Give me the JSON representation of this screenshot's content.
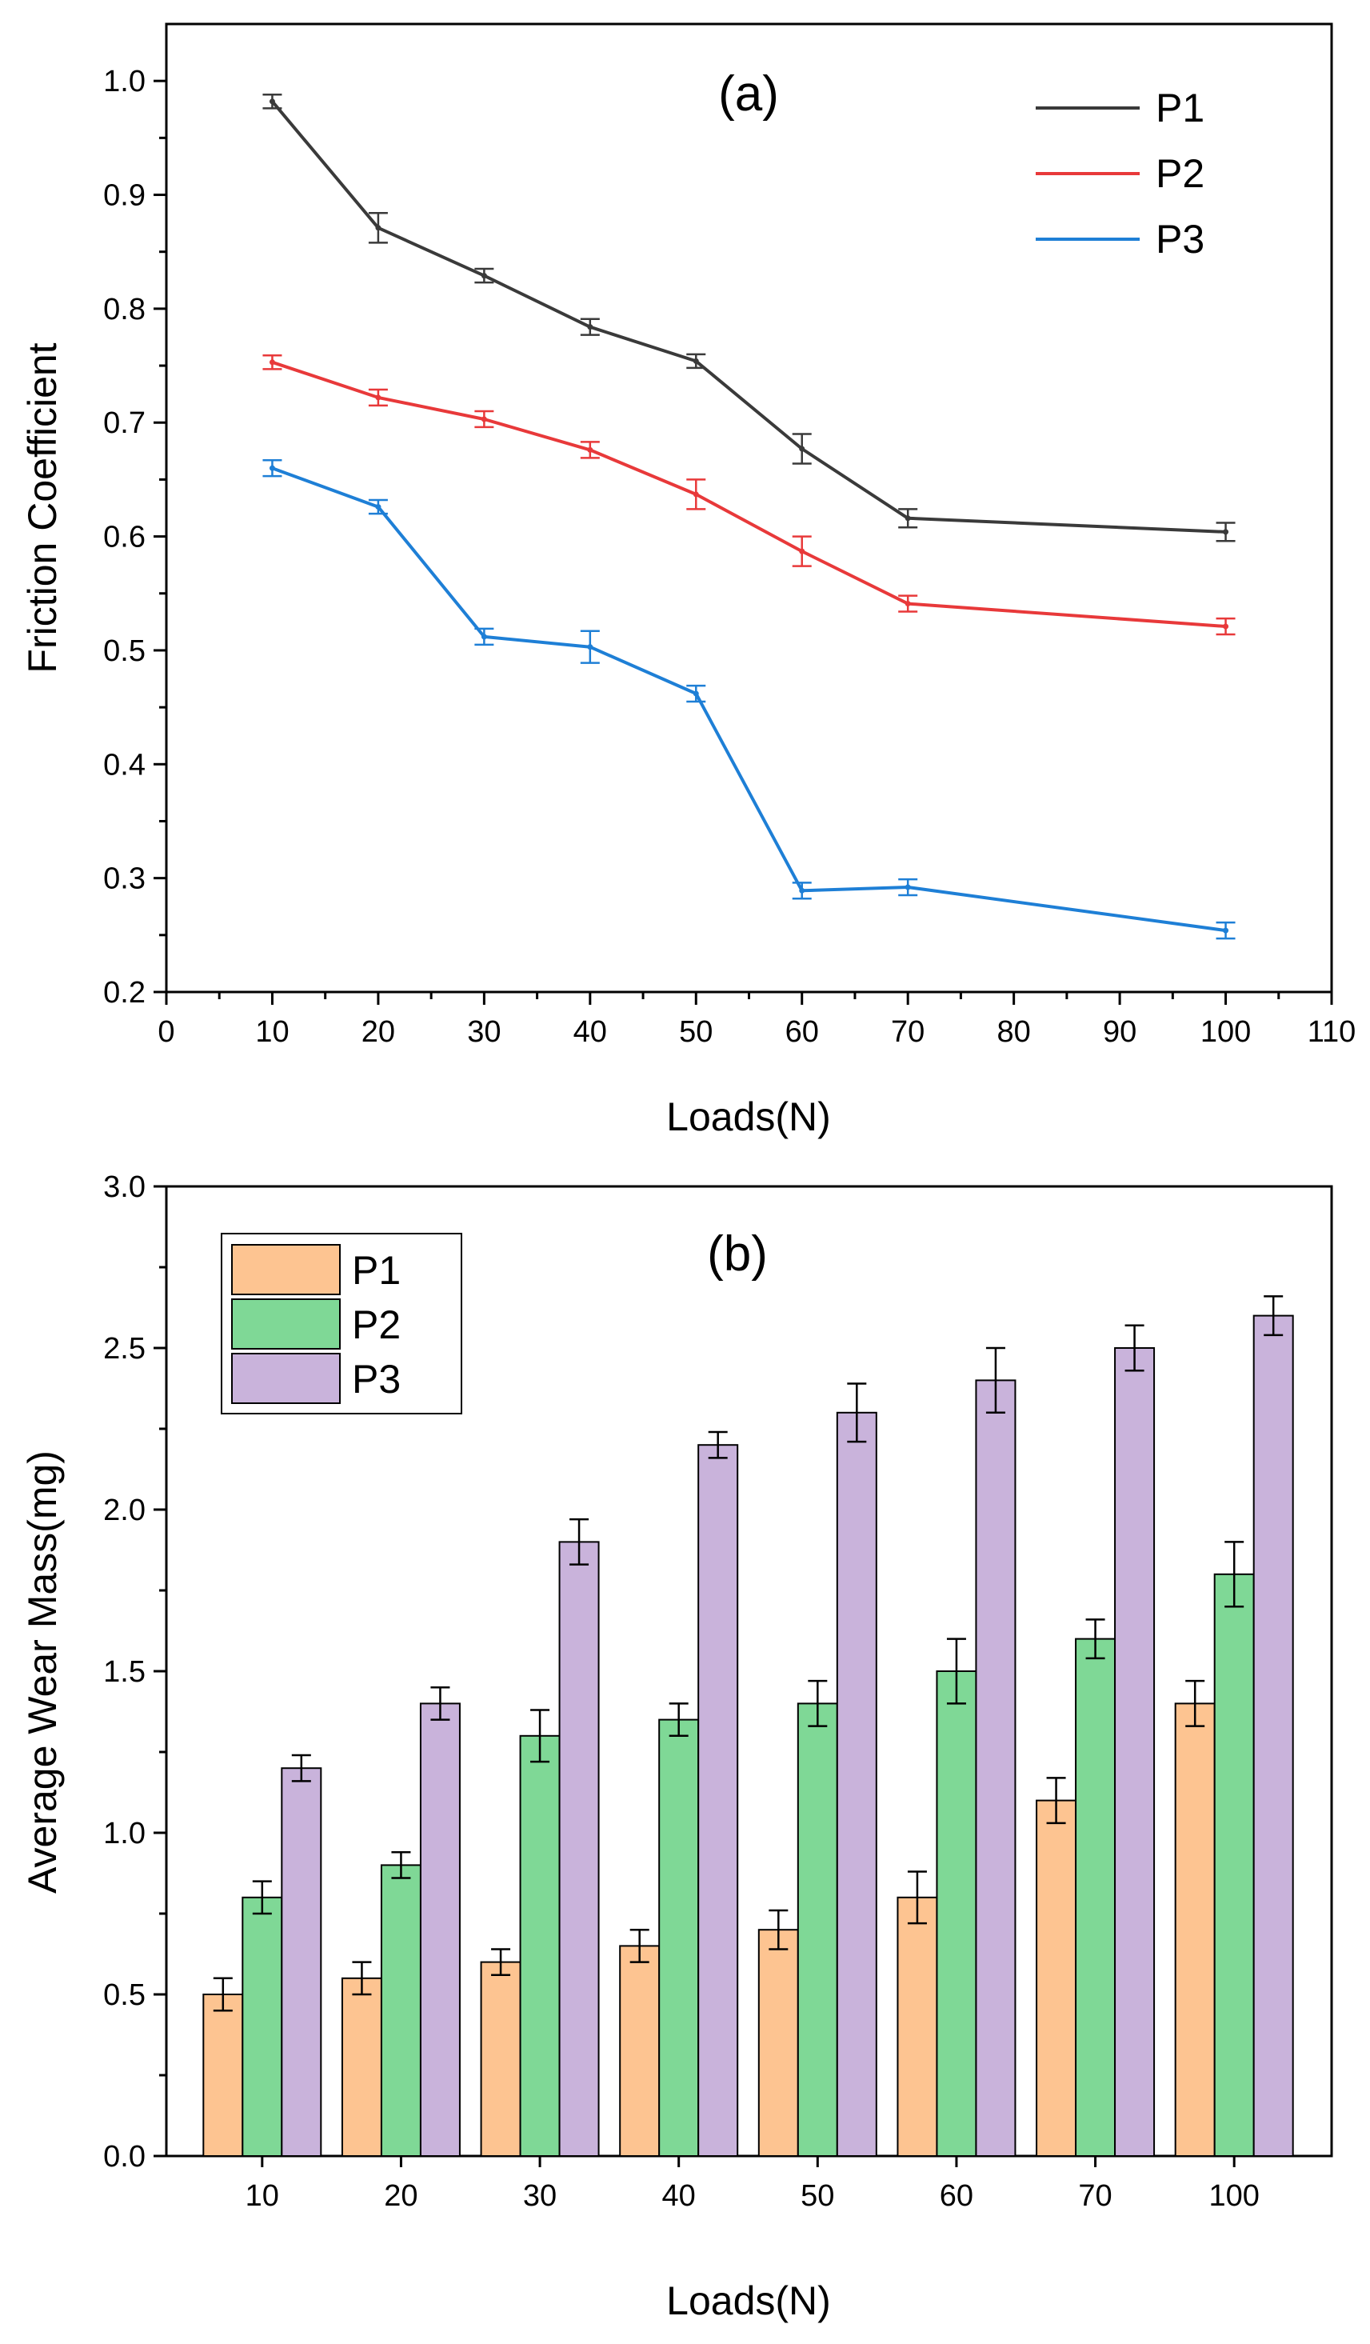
{
  "chart_data": [
    {
      "panel": "(a)",
      "type": "line",
      "xlabel": "Loads(N)",
      "ylabel": "Friction Coefficient",
      "xlim": [
        0,
        110
      ],
      "ylim": [
        0.2,
        1.05
      ],
      "xticks": [
        0,
        10,
        20,
        30,
        40,
        50,
        60,
        70,
        80,
        90,
        100,
        110
      ],
      "yticks": [
        0.2,
        0.3,
        0.4,
        0.5,
        0.6,
        0.7,
        0.8,
        0.9,
        1.0
      ],
      "ytick_labels": [
        "0.2",
        "0.3",
        "0.4",
        "0.5",
        "0.6",
        "0.7",
        "0.8",
        "0.9",
        "1.0"
      ],
      "legend_position": "top-right",
      "x": [
        10,
        20,
        30,
        40,
        50,
        60,
        70,
        100
      ],
      "series": [
        {
          "name": "P1",
          "color": "#3a3a3a",
          "values": [
            0.982,
            0.871,
            0.829,
            0.784,
            0.754,
            0.677,
            0.616,
            0.604
          ],
          "errors": [
            0.006,
            0.013,
            0.006,
            0.007,
            0.006,
            0.013,
            0.008,
            0.008
          ]
        },
        {
          "name": "P2",
          "color": "#e8393a",
          "values": [
            0.753,
            0.722,
            0.703,
            0.676,
            0.637,
            0.587,
            0.541,
            0.521
          ],
          "errors": [
            0.006,
            0.007,
            0.007,
            0.007,
            0.013,
            0.013,
            0.007,
            0.007
          ]
        },
        {
          "name": "P3",
          "color": "#1e7fd6",
          "values": [
            0.66,
            0.626,
            0.512,
            0.503,
            0.462,
            0.289,
            0.292,
            0.254
          ],
          "errors": [
            0.007,
            0.006,
            0.007,
            0.014,
            0.007,
            0.007,
            0.007,
            0.007
          ]
        }
      ]
    },
    {
      "panel": "(b)",
      "type": "bar",
      "xlabel": "Loads(N)",
      "ylabel": "Average Wear Mass(mg)",
      "ylim": [
        0,
        3.0
      ],
      "yticks": [
        0,
        0.5,
        1.0,
        1.5,
        2.0,
        2.5,
        3.0
      ],
      "ytick_labels": [
        "0.0",
        "0.5",
        "1.0",
        "1.5",
        "2.0",
        "2.5",
        "3.0"
      ],
      "legend_position": "top-left",
      "categories": [
        "10",
        "20",
        "30",
        "40",
        "50",
        "60",
        "70",
        "100"
      ],
      "series": [
        {
          "name": "P1",
          "color": "#fdc491",
          "values": [
            0.5,
            0.55,
            0.6,
            0.65,
            0.7,
            0.8,
            1.1,
            1.4
          ],
          "errors": [
            0.05,
            0.05,
            0.04,
            0.05,
            0.06,
            0.08,
            0.07,
            0.07
          ]
        },
        {
          "name": "P2",
          "color": "#7fd896",
          "values": [
            0.8,
            0.9,
            1.3,
            1.35,
            1.4,
            1.5,
            1.6,
            1.8
          ],
          "errors": [
            0.05,
            0.04,
            0.08,
            0.05,
            0.07,
            0.1,
            0.06,
            0.1
          ]
        },
        {
          "name": "P3",
          "color": "#c9b3db",
          "values": [
            1.2,
            1.4,
            1.9,
            2.2,
            2.3,
            2.4,
            2.5,
            2.6
          ],
          "errors": [
            0.04,
            0.05,
            0.07,
            0.04,
            0.09,
            0.1,
            0.07,
            0.06
          ]
        }
      ]
    }
  ]
}
